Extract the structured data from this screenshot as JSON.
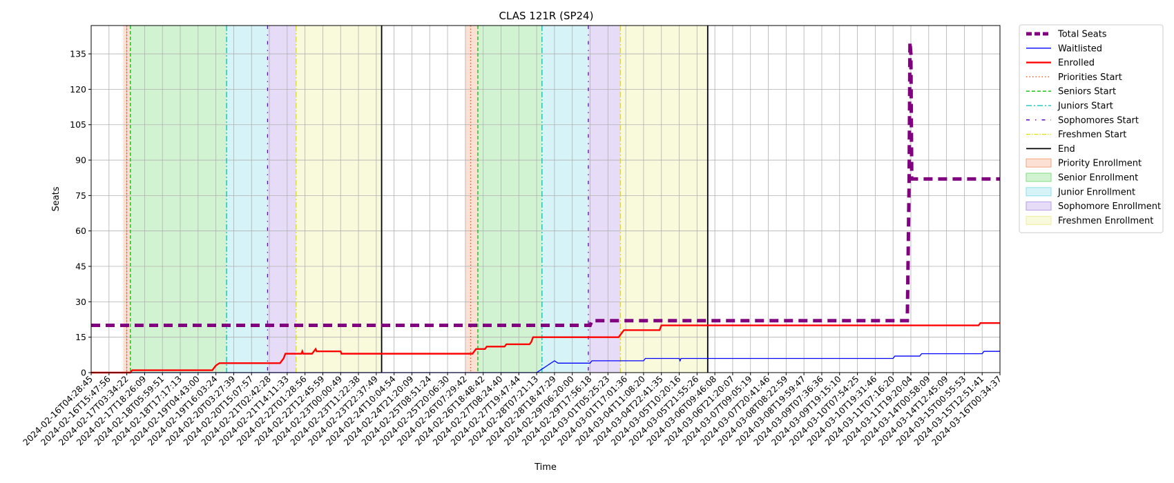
{
  "chart_data": {
    "type": "line",
    "title": "CLAS 121R (SP24)",
    "xlabel": "Time",
    "ylabel": "Seats",
    "ylim": [
      0,
      147
    ],
    "yticks": [
      0,
      15,
      30,
      45,
      60,
      75,
      90,
      105,
      120,
      135
    ],
    "grid": true,
    "legend_position": "outside-right",
    "x_tick_labels": [
      "2024-02-16T04:28:45",
      "2024-02-16T15:47:56",
      "2024-02-17T03:34:22",
      "2024-02-17T18:26:09",
      "2024-02-18T05:59:51",
      "2024-02-18T17:17:13",
      "2024-02-19T04:43:00",
      "2024-02-19T16:03:24",
      "2024-02-20T03:27:39",
      "2024-02-20T15:07:57",
      "2024-02-21T02:42:28",
      "2024-02-21T14:11:33",
      "2024-02-22T01:28:56",
      "2024-02-22T12:45:59",
      "2024-02-23T00:00:49",
      "2024-02-23T11:22:38",
      "2024-02-23T22:37:49",
      "2024-02-24T10:04:54",
      "2024-02-24T21:20:09",
      "2024-02-25T08:51:24",
      "2024-02-25T20:06:30",
      "2024-02-26T07:29:42",
      "2024-02-26T18:48:42",
      "2024-02-27T08:24:40",
      "2024-02-27T19:47:44",
      "2024-02-28T07:21:13",
      "2024-02-28T18:47:29",
      "2024-02-29T06:20:00",
      "2024-02-29T17:56:18",
      "2024-03-01T05:25:23",
      "2024-03-01T17:01:36",
      "2024-03-04T11:08:20",
      "2024-03-04T22:41:35",
      "2024-03-05T10:20:16",
      "2024-03-05T21:55:26",
      "2024-03-06T09:46:08",
      "2024-03-06T21:20:07",
      "2024-03-07T09:05:19",
      "2024-03-07T20:41:46",
      "2024-03-08T08:22:59",
      "2024-03-08T19:59:47",
      "2024-03-09T07:36:36",
      "2024-03-09T19:15:10",
      "2024-03-10T07:54:25",
      "2024-03-10T19:31:46",
      "2024-03-11T07:16:20",
      "2024-03-11T19:20:04",
      "2024-03-14T00:58:09",
      "2024-03-14T12:45:09",
      "2024-03-15T00:55:53",
      "2024-03-15T12:51:41",
      "2024-03-16T00:34:37"
    ],
    "x_range": [
      0,
      51
    ],
    "series": [
      {
        "name": "Total Seats",
        "color": "#800080",
        "style": "dashed-thick",
        "points": [
          [
            0,
            20
          ],
          [
            28.0,
            20
          ],
          [
            28.1,
            22
          ],
          [
            45.8,
            22
          ],
          [
            45.9,
            80
          ],
          [
            45.95,
            140
          ],
          [
            46.0,
            135
          ],
          [
            46.05,
            82
          ],
          [
            51,
            82
          ]
        ]
      },
      {
        "name": "Waitlisted",
        "color": "#0000ff",
        "style": "solid-thin",
        "points": [
          [
            0,
            0
          ],
          [
            25.0,
            0
          ],
          [
            25.2,
            1
          ],
          [
            25.4,
            2
          ],
          [
            25.6,
            3
          ],
          [
            25.8,
            4
          ],
          [
            26.0,
            5
          ],
          [
            26.2,
            4
          ],
          [
            28.0,
            4
          ],
          [
            28.1,
            5
          ],
          [
            31.0,
            5
          ],
          [
            31.1,
            6
          ],
          [
            33.0,
            6
          ],
          [
            33.05,
            5
          ],
          [
            33.1,
            6
          ],
          [
            45.0,
            6
          ],
          [
            45.1,
            7
          ],
          [
            46.5,
            7
          ],
          [
            46.6,
            8
          ],
          [
            50.0,
            8
          ],
          [
            50.1,
            9
          ],
          [
            51,
            9
          ]
        ]
      },
      {
        "name": "Enrolled",
        "color": "#ff0000",
        "style": "solid",
        "points": [
          [
            0,
            0
          ],
          [
            2.2,
            0
          ],
          [
            2.3,
            1
          ],
          [
            6.8,
            1
          ],
          [
            6.9,
            2
          ],
          [
            7.0,
            3
          ],
          [
            7.2,
            4
          ],
          [
            10.6,
            4
          ],
          [
            10.7,
            5
          ],
          [
            10.8,
            6
          ],
          [
            10.9,
            8
          ],
          [
            11.8,
            8
          ],
          [
            11.85,
            9
          ],
          [
            11.9,
            8
          ],
          [
            12.4,
            8
          ],
          [
            12.5,
            9
          ],
          [
            12.6,
            10
          ],
          [
            12.65,
            9
          ],
          [
            14.0,
            9
          ],
          [
            14.05,
            8
          ],
          [
            19.0,
            8
          ],
          [
            21.4,
            8
          ],
          [
            21.5,
            9
          ],
          [
            21.6,
            10
          ],
          [
            22.1,
            10
          ],
          [
            22.2,
            11
          ],
          [
            23.2,
            11
          ],
          [
            23.3,
            12
          ],
          [
            24.6,
            12
          ],
          [
            24.7,
            13
          ],
          [
            24.8,
            15
          ],
          [
            29.6,
            15
          ],
          [
            29.7,
            16
          ],
          [
            29.8,
            17
          ],
          [
            29.9,
            18
          ],
          [
            31.9,
            18
          ],
          [
            32.0,
            20
          ],
          [
            49.8,
            20
          ],
          [
            49.9,
            21
          ],
          [
            51,
            21
          ]
        ]
      }
    ],
    "vertical_lines": [
      {
        "name": "Priorities Start",
        "color": "#ff4500",
        "style": "dotted",
        "x": [
          2.0,
          21.3
        ]
      },
      {
        "name": "Seniors Start",
        "color": "#00c000",
        "style": "dashed",
        "x": [
          2.2,
          21.7
        ]
      },
      {
        "name": "Juniors Start",
        "color": "#00bfbf",
        "style": "dashdot",
        "x": [
          7.6,
          25.3
        ]
      },
      {
        "name": "Sophomores Start",
        "color": "#6a00d8",
        "style": "loose-dashdot",
        "x": [
          9.9,
          27.9
        ]
      },
      {
        "name": "Freshmen Start",
        "color": "#e0e000",
        "style": "dashdot",
        "x": [
          11.5,
          29.7
        ]
      },
      {
        "name": "End",
        "color": "#000000",
        "style": "solid",
        "x": [
          16.3,
          34.6
        ]
      }
    ],
    "spans": [
      {
        "name": "Priority Enrollment",
        "color": "#f4a582",
        "ranges": [
          [
            1.8,
            2.2
          ],
          [
            21.0,
            21.7
          ]
        ]
      },
      {
        "name": "Senior Enrollment",
        "color": "#7fdc7f",
        "ranges": [
          [
            2.2,
            7.6
          ],
          [
            21.7,
            25.3
          ]
        ]
      },
      {
        "name": "Junior Enrollment",
        "color": "#8ae0e8",
        "ranges": [
          [
            7.6,
            9.9
          ],
          [
            25.3,
            27.9
          ]
        ]
      },
      {
        "name": "Sophomore Enrollment",
        "color": "#b79cea",
        "ranges": [
          [
            9.9,
            11.5
          ],
          [
            27.9,
            29.7
          ]
        ]
      },
      {
        "name": "Freshmen Enrollment",
        "color": "#eded9b",
        "ranges": [
          [
            11.5,
            16.3
          ],
          [
            29.7,
            34.6
          ]
        ]
      }
    ],
    "legend": [
      {
        "label": "Total Seats",
        "kind": "line",
        "color": "#800080",
        "dash": "8,4",
        "width": 5
      },
      {
        "label": "Waitlisted",
        "kind": "line",
        "color": "#0000ff",
        "dash": "",
        "width": 1.3
      },
      {
        "label": "Enrolled",
        "kind": "line",
        "color": "#ff0000",
        "dash": "",
        "width": 2.4
      },
      {
        "label": "Priorities Start",
        "kind": "line",
        "color": "#ff4500",
        "dash": "1.5,3",
        "width": 1.3
      },
      {
        "label": "Seniors Start",
        "kind": "line",
        "color": "#00c000",
        "dash": "5,3",
        "width": 1.3
      },
      {
        "label": "Juniors Start",
        "kind": "line",
        "color": "#00bfbf",
        "dash": "8,3,2,3",
        "width": 1.3
      },
      {
        "label": "Sophomores Start",
        "kind": "line",
        "color": "#6a00d8",
        "dash": "5,8,1.5,8",
        "width": 1.5
      },
      {
        "label": "Freshmen Start",
        "kind": "line",
        "color": "#e0e000",
        "dash": "6,2,1.5,2",
        "width": 1.3
      },
      {
        "label": "End",
        "kind": "line",
        "color": "#000000",
        "dash": "",
        "width": 1.8
      },
      {
        "label": "Priority Enrollment",
        "kind": "patch",
        "color": "#f4a582"
      },
      {
        "label": "Senior Enrollment",
        "kind": "patch",
        "color": "#7fdc7f"
      },
      {
        "label": "Junior Enrollment",
        "kind": "patch",
        "color": "#8ae0e8"
      },
      {
        "label": "Sophomore Enrollment",
        "kind": "patch",
        "color": "#b79cea"
      },
      {
        "label": "Freshmen Enrollment",
        "kind": "patch",
        "color": "#eded9b"
      }
    ]
  }
}
